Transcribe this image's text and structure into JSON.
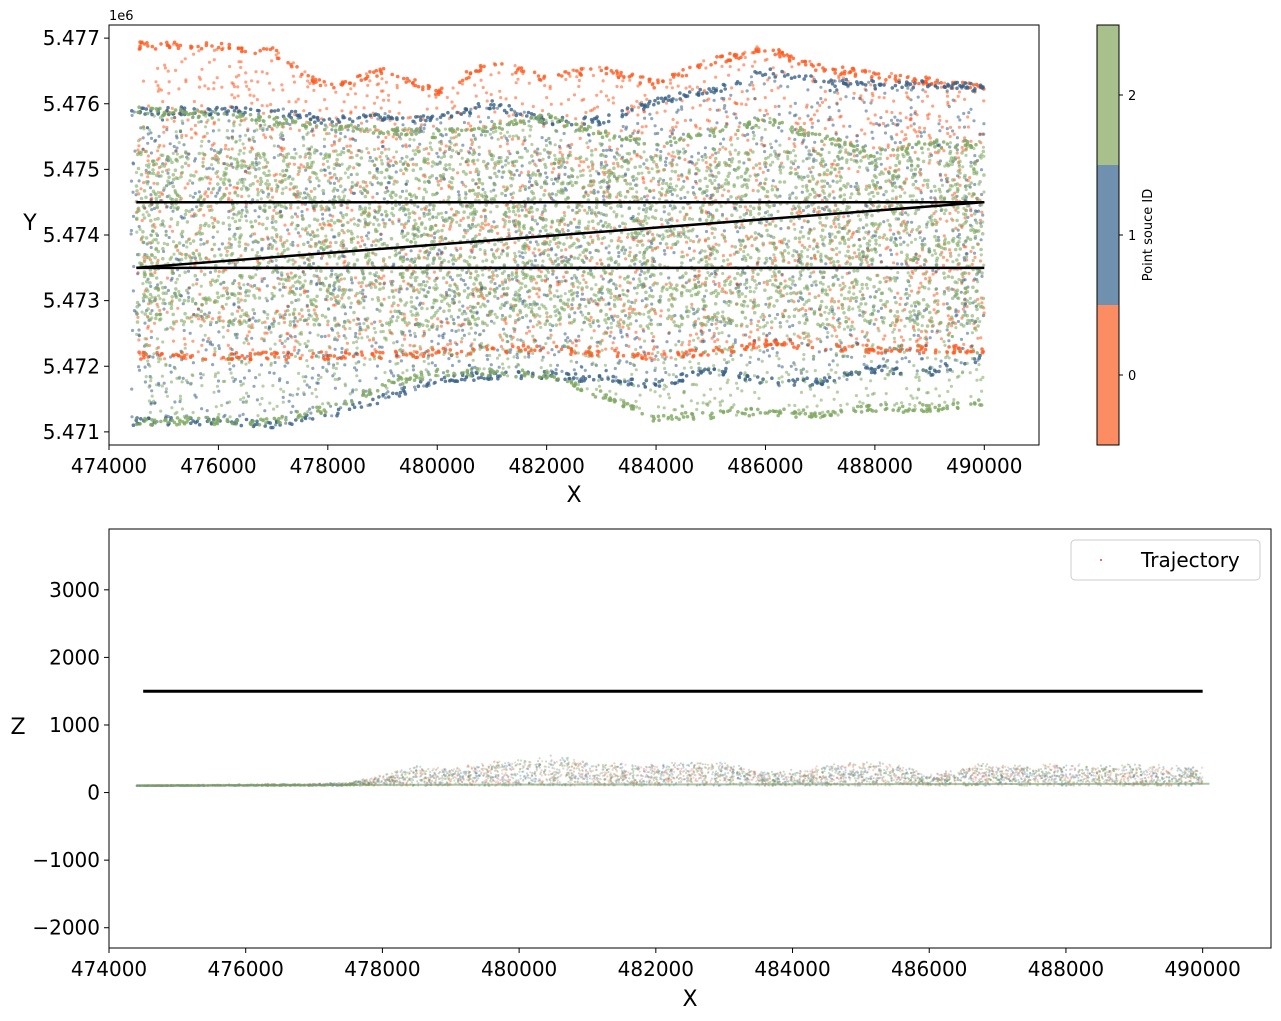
{
  "chart_data": [
    {
      "type": "scatter",
      "xlabel": "X",
      "ylabel": "Y",
      "y_offset_label": "1e6",
      "xlim": [
        474000,
        491000
      ],
      "ylim": [
        5470800,
        5477200
      ],
      "x_ticks": [
        "474000",
        "476000",
        "478000",
        "480000",
        "482000",
        "484000",
        "486000",
        "488000",
        "490000"
      ],
      "x_tick_values": [
        474000,
        476000,
        478000,
        480000,
        482000,
        484000,
        486000,
        488000,
        490000
      ],
      "y_ticks": [
        "5.471",
        "5.472",
        "5.473",
        "5.474",
        "5.475",
        "5.476",
        "5.477"
      ],
      "y_tick_values": [
        5471000,
        5472000,
        5473000,
        5474000,
        5475000,
        5476000,
        5477000
      ],
      "colorbar": {
        "label": "Point souce ID",
        "ticks": [
          "0",
          "1",
          "2"
        ],
        "colors": [
          "#fc8d62",
          "#6f90ae",
          "#a8c08c"
        ]
      },
      "series": [
        {
          "id": 0,
          "color": "#ff5a1f",
          "x": [
            474500,
            476000,
            477000,
            478000,
            479000,
            480000,
            481000,
            482000,
            483000,
            484000,
            485000,
            486000,
            487000,
            488000,
            489000,
            490000
          ],
          "y_top": [
            5476950,
            5476950,
            5476850,
            5476300,
            5476550,
            5476250,
            5476700,
            5476450,
            5476600,
            5476350,
            5476700,
            5476900,
            5476600,
            5476500,
            5476400,
            5476300
          ],
          "y_bottom": [
            5472100,
            5472100,
            5472100,
            5472100,
            5472100,
            5472150,
            5472200,
            5472200,
            5472150,
            5472100,
            5472150,
            5472300,
            5472250,
            5472200,
            5472200,
            5472200
          ]
        },
        {
          "id": 1,
          "color": "#3a6186",
          "x": [
            474400,
            476000,
            477000,
            478000,
            479000,
            480000,
            481000,
            482000,
            483000,
            484000,
            485000,
            486000,
            487000,
            488000,
            489000,
            490000
          ],
          "y_top": [
            5475950,
            5475950,
            5475950,
            5475800,
            5475850,
            5475850,
            5476050,
            5475800,
            5475800,
            5476100,
            5476250,
            5476550,
            5476400,
            5476350,
            5476350,
            5476300
          ],
          "y_bottom": [
            5471100,
            5471100,
            5471050,
            5471200,
            5471450,
            5471750,
            5471800,
            5471800,
            5471750,
            5471650,
            5471900,
            5471700,
            5471700,
            5471900,
            5471850,
            5472100
          ]
        },
        {
          "id": 2,
          "color": "#7ea860",
          "x": [
            474500,
            476000,
            477000,
            478000,
            479000,
            480000,
            481000,
            482000,
            483000,
            484000,
            485000,
            486000,
            487000,
            488000,
            489000,
            490000
          ],
          "y_top": [
            5475950,
            5475900,
            5475800,
            5475700,
            5475650,
            5475600,
            5475700,
            5475850,
            5475600,
            5475450,
            5475600,
            5475800,
            5475550,
            5475300,
            5475450,
            5475450
          ],
          "y_bottom": [
            5471100,
            5471100,
            5471100,
            5471300,
            5471650,
            5471850,
            5471850,
            5471800,
            5471500,
            5471150,
            5471200,
            5471250,
            5471200,
            5471300,
            5471300,
            5471400
          ]
        }
      ],
      "trajectory_lines": [
        {
          "x": [
            474500,
            490000
          ],
          "y": [
            5474500,
            5474500
          ]
        },
        {
          "x": [
            474500,
            490000
          ],
          "y": [
            5473500,
            5473500
          ]
        },
        {
          "x": [
            474500,
            490000
          ],
          "y": [
            5473500,
            5474500
          ]
        }
      ]
    },
    {
      "type": "scatter",
      "xlabel": "X",
      "ylabel": "Z",
      "xlim": [
        474000,
        491000
      ],
      "ylim": [
        -2300,
        3900
      ],
      "x_ticks": [
        "474000",
        "476000",
        "478000",
        "480000",
        "482000",
        "484000",
        "486000",
        "488000",
        "490000"
      ],
      "x_tick_values": [
        474000,
        476000,
        478000,
        480000,
        482000,
        484000,
        486000,
        488000,
        490000
      ],
      "y_ticks": [
        "−2000",
        "−1000",
        "0",
        "1000",
        "2000",
        "3000"
      ],
      "y_tick_values": [
        -2000,
        -1000,
        0,
        1000,
        2000,
        3000
      ],
      "legend": {
        "label": "Trajectory",
        "position": "upper right"
      },
      "trajectory": {
        "x": [
          474500,
          490000
        ],
        "z": [
          1500,
          1500
        ]
      },
      "terrain_profile": {
        "x": [
          474400,
          475000,
          476000,
          477000,
          477500,
          478000,
          478500,
          479000,
          480000,
          480500,
          481000,
          482000,
          482500,
          483000,
          483500,
          484000,
          484500,
          485000,
          485500,
          486000,
          486500,
          487000,
          487500,
          488000,
          488500,
          489000,
          489500,
          490000
        ],
        "z": [
          100,
          110,
          120,
          130,
          150,
          250,
          400,
          350,
          500,
          550,
          450,
          420,
          480,
          450,
          320,
          330,
          400,
          470,
          430,
          250,
          400,
          420,
          380,
          430,
          400,
          420,
          380,
          400
        ]
      }
    }
  ]
}
